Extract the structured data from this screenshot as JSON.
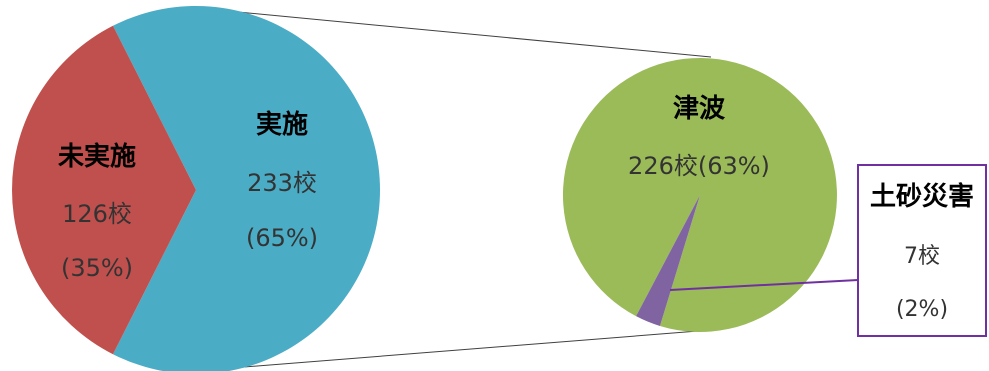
{
  "chart_data": [
    {
      "type": "pie",
      "slices": [
        {
          "label": "実施",
          "value": 233,
          "value_text": "233校",
          "percent_text": "(65%)",
          "color": "#4BACC6"
        },
        {
          "label": "未実施",
          "value": 126,
          "value_text": "126校",
          "percent_text": "(35%)",
          "color": "#C0504D"
        }
      ]
    },
    {
      "type": "pie",
      "slices": [
        {
          "label": "津波",
          "value": 226,
          "value_text": "226校(63%)",
          "color": "#9BBB59"
        },
        {
          "label": "土砂災害",
          "value": 7,
          "value_text": "7校",
          "percent_text": "(2%)",
          "color": "#8064A2"
        }
      ]
    }
  ],
  "colors": {
    "connector": "#404040",
    "callout_border": "#7030A0",
    "callout_line": "#7030A0"
  }
}
